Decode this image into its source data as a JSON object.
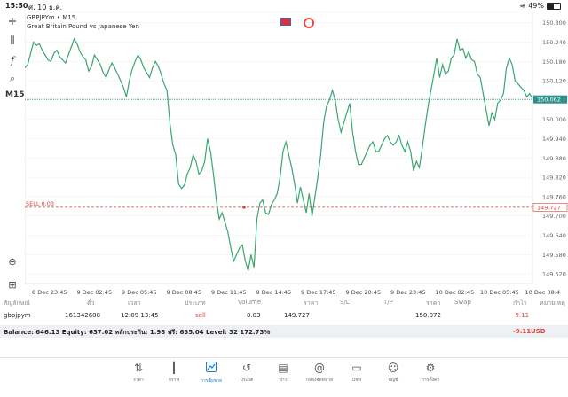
{
  "status": {
    "time": "15:50",
    "date": "ศ. 10 ธ.ค.",
    "battery": "49%"
  },
  "chart": {
    "symbol_line": "GBPJPYm • M15",
    "description": "Great Britain Pound vs Japanese Yen",
    "timeframe": "M15",
    "sell_label": "SELL 0.03",
    "current_price": "150.062",
    "sell_price": "149.727",
    "price_ticks": [
      "150.300",
      "150.240",
      "150.180",
      "150.120",
      "150.000",
      "149.940",
      "149.880",
      "149.820",
      "149.760",
      "149.700",
      "149.640",
      "149.580",
      "149.520"
    ],
    "time_ticks": [
      "8 Dec 23:45",
      "9 Dec 02:45",
      "9 Dec 05:45",
      "9 Dec 08:45",
      "9 Dec 11:45",
      "9 Dec 14:45",
      "9 Dec 17:45",
      "9 Dec 20:45",
      "9 Dec 23:45",
      "10 Dec 02:45",
      "10 Dec 05:45",
      "10 Dec 08:4"
    ],
    "line_color": "#3aa66f",
    "sell_color": "#e0413a",
    "current_color": "#2f8f8a"
  },
  "chart_data": {
    "type": "line",
    "title": "",
    "ylim": [
      149.49,
      150.335
    ],
    "x_range": [
      0,
      572
    ],
    "y": [
      150.16,
      150.17,
      150.205,
      150.24,
      150.23,
      150.235,
      150.215,
      150.2,
      150.185,
      150.18,
      150.205,
      150.215,
      150.195,
      150.185,
      150.175,
      150.2,
      150.225,
      150.25,
      150.235,
      150.21,
      150.195,
      150.185,
      150.15,
      150.165,
      150.2,
      150.185,
      150.17,
      150.145,
      150.13,
      150.155,
      150.175,
      150.16,
      150.14,
      150.12,
      150.1,
      150.07,
      150.12,
      150.155,
      150.18,
      150.2,
      150.185,
      150.16,
      150.145,
      150.13,
      150.16,
      150.18,
      150.165,
      150.14,
      150.11,
      150.09,
      149.99,
      149.92,
      149.89,
      149.8,
      149.785,
      149.795,
      149.83,
      149.85,
      149.89,
      149.87,
      149.83,
      149.84,
      149.87,
      149.94,
      149.9,
      149.83,
      149.75,
      149.69,
      149.71,
      149.68,
      149.65,
      149.6,
      149.56,
      149.58,
      149.6,
      149.61,
      149.56,
      149.53,
      149.58,
      149.54,
      149.69,
      149.74,
      149.75,
      149.71,
      149.705,
      149.735,
      149.75,
      149.77,
      149.82,
      149.9,
      149.93,
      149.89,
      149.85,
      149.8,
      149.74,
      149.79,
      149.75,
      149.71,
      149.77,
      149.7,
      149.76,
      149.82,
      149.89,
      149.99,
      150.04,
      150.06,
      150.09,
      150.06,
      150.0,
      149.96,
      149.99,
      150.02,
      150.05,
      149.96,
      149.9,
      149.86,
      149.86,
      149.88,
      149.9,
      149.92,
      149.93,
      149.9,
      149.9,
      149.92,
      149.94,
      149.95,
      149.93,
      149.92,
      149.93,
      149.95,
      149.92,
      149.9,
      149.93,
      149.9,
      149.84,
      149.87,
      149.85,
      149.91,
      149.98,
      150.04,
      150.09,
      150.14,
      150.19,
      150.13,
      150.17,
      150.14,
      150.15,
      150.19,
      150.2,
      150.25,
      150.215,
      150.22,
      150.19,
      150.21,
      150.185,
      150.18,
      150.14,
      150.13,
      150.08,
      150.03,
      149.98,
      150.02,
      150.0,
      150.05,
      150.06,
      150.08,
      150.16,
      150.19,
      150.17,
      150.12,
      150.11,
      150.1,
      150.09,
      150.07,
      150.08,
      150.065
    ]
  },
  "positions": {
    "headers": [
      "สัญลักษณ์",
      "ตั๋ว",
      "เวลา",
      "ประเภท",
      "Volume",
      "ราคา",
      "S/L",
      "T/P",
      "ราคา",
      "Swap",
      "กำไร",
      "หมายเหตุ"
    ],
    "row": {
      "symbol": "gbpjpym",
      "ticket": "161342608",
      "time": "12:09 13:45",
      "type": "sell",
      "volume": "0.03",
      "open_price": "149.727",
      "current_price": "150.072",
      "profit": "-9.11"
    },
    "balance_text": "Balance: 646.13 Equity: 637.02 หลักประกัน: 1.98 ฟรี: 635.04 Level: 32 172.73%",
    "balance_pl": "-9.11",
    "balance_currency": "USD"
  },
  "nav": [
    {
      "label": "ราคา",
      "icon": "quotes-icon",
      "glyph": "⇅"
    },
    {
      "label": "กราฟ",
      "icon": "candles-icon",
      "glyph": "┃"
    },
    {
      "label": "การซื้อขาย",
      "icon": "trade-icon",
      "glyph": "📈"
    },
    {
      "label": "ประวัติ",
      "icon": "history-icon",
      "glyph": "↺"
    },
    {
      "label": "ข่าว",
      "icon": "news-icon",
      "glyph": "▤"
    },
    {
      "label": "กล่องจดหมาย",
      "icon": "mail-icon",
      "glyph": "@"
    },
    {
      "label": "แชท",
      "icon": "chat-icon",
      "glyph": "▭"
    },
    {
      "label": "บัญชี",
      "icon": "account-icon",
      "glyph": "☺"
    },
    {
      "label": "การตั้งค่า",
      "icon": "settings-icon",
      "glyph": "⚙"
    }
  ]
}
